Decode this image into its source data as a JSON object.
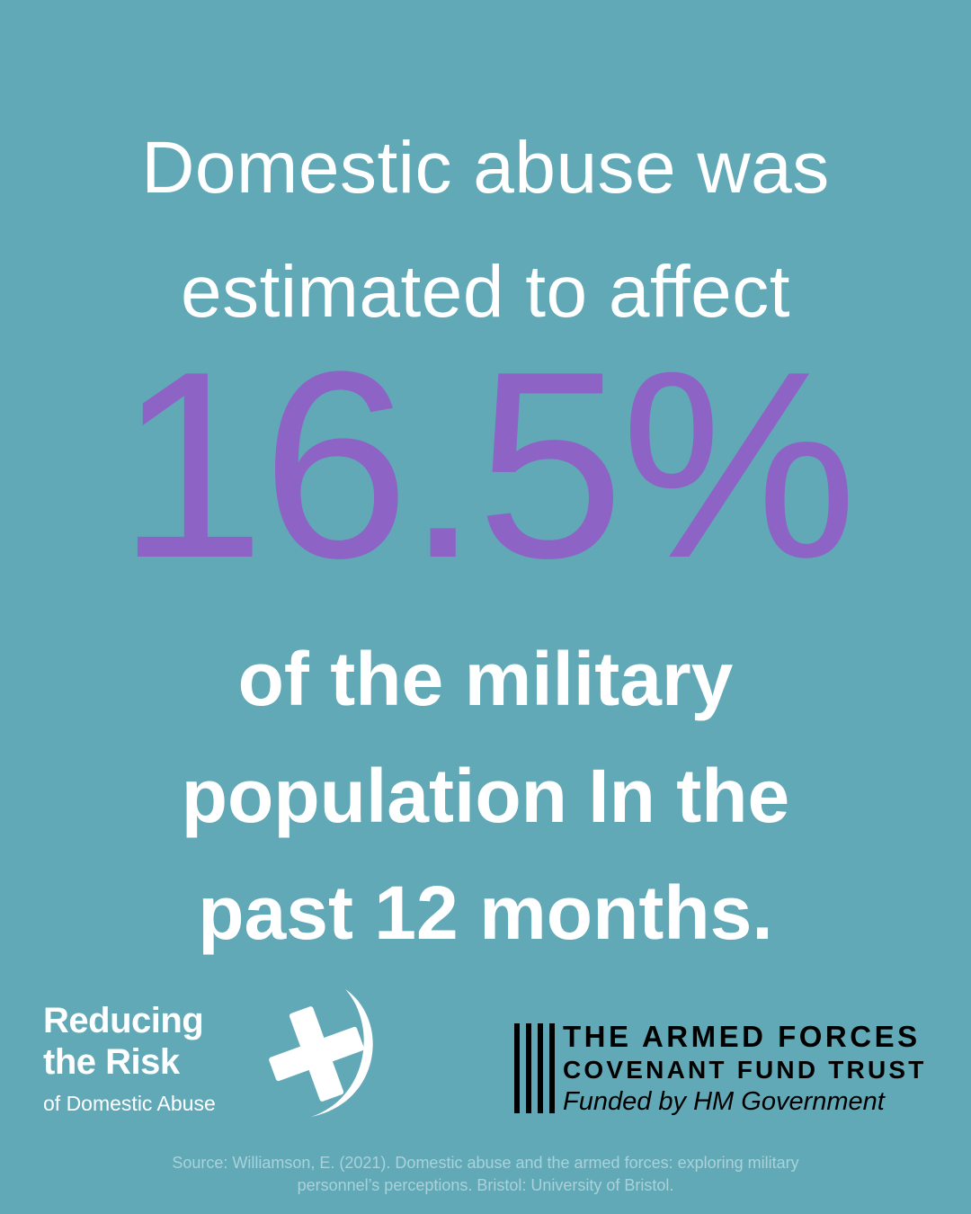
{
  "headline": {
    "line1": "Domestic abuse was",
    "line2": "estimated to affect"
  },
  "statistic": {
    "value": "16.5%",
    "color": "#8e63c6"
  },
  "subline": {
    "line1": "of the military",
    "line2": "population In the",
    "line3": "past 12 months."
  },
  "logo_rtr": {
    "title_line1": "Reducing",
    "title_line2": "the Risk",
    "subtitle": "of Domestic Abuse",
    "icon": "cross-crescent-icon"
  },
  "logo_afc": {
    "line1": "THE ARMED FORCES",
    "line2": "COVENANT FUND TRUST",
    "line3": "Funded by HM Government",
    "icon": "vertical-bars-icon"
  },
  "source": {
    "line1": "Source: Williamson, E. (2021). Domestic abuse and the armed forces: exploring military",
    "line2": "personnel’s perceptions. Bristol: University of Bristol."
  },
  "colors": {
    "background": "#62a9b7",
    "text": "#ffffff",
    "source_text": "#a9d2da",
    "afc_text": "#000000"
  }
}
